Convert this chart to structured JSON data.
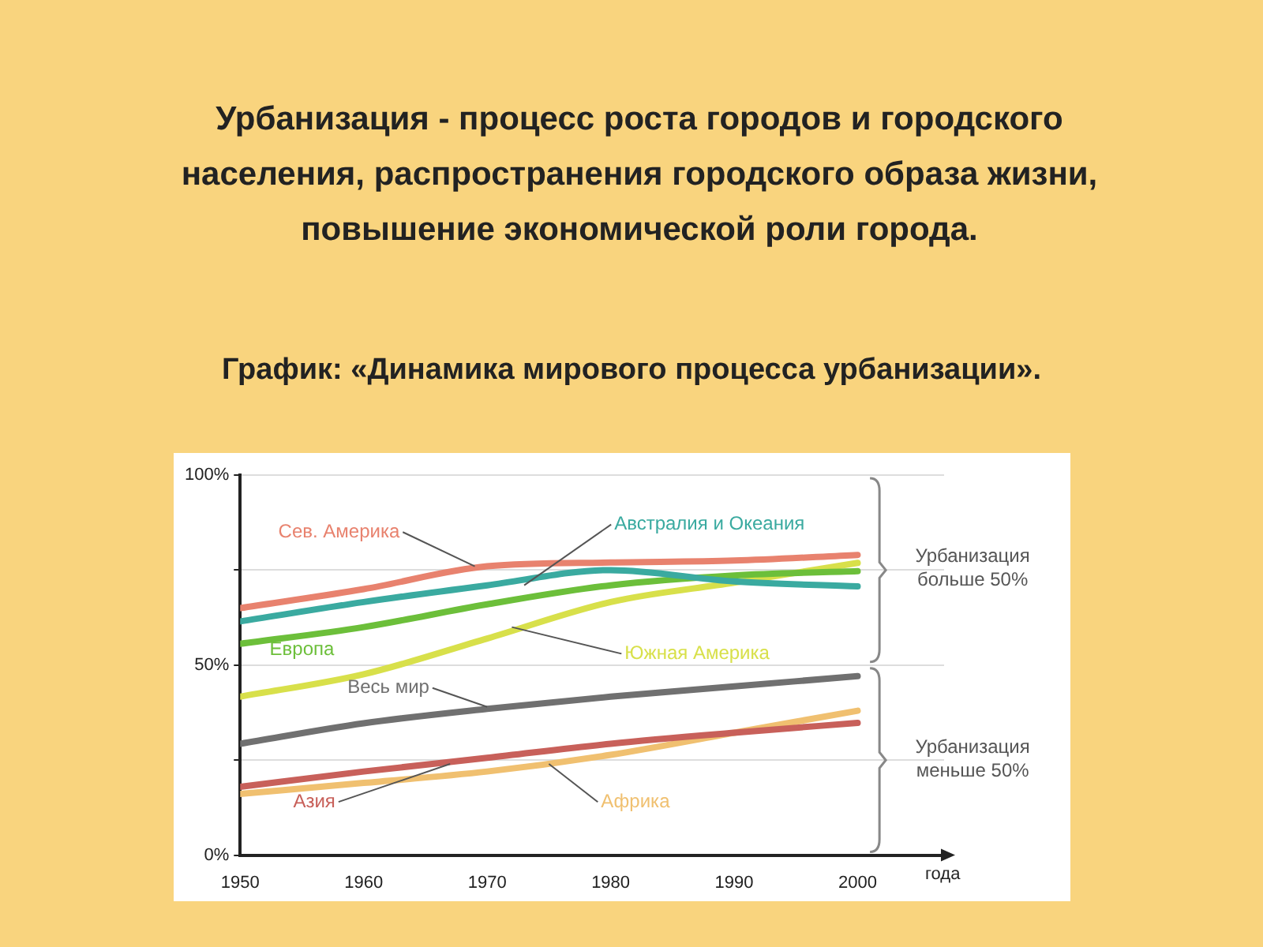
{
  "chart_data": {
    "type": "line",
    "title": "Урбанизация - процесс роста городов и городского населения, распространения городского образа жизни, повышение экономической роли города.",
    "subtitle": "График: «Динамика мирового процесса урбанизации».",
    "xlabel": "года",
    "x": [
      1950,
      1960,
      1970,
      1980,
      1990,
      2000
    ],
    "series": [
      {
        "name": "Сев. Америка",
        "color": "#e8826e",
        "values": [
          65,
          70,
          76,
          77,
          77.5,
          79
        ]
      },
      {
        "name": "Австралия и Океания",
        "color": "#3aaaa0",
        "values": [
          61.5,
          66.6,
          71,
          75,
          72,
          70.7
        ]
      },
      {
        "name": "Европа",
        "color": "#6cbf3a",
        "values": [
          55.6,
          60,
          66,
          71,
          73.6,
          74.7
        ]
      },
      {
        "name": "Южная Америка",
        "color": "#d8e04a",
        "values": [
          41.7,
          47.6,
          57,
          66.6,
          71.7,
          76.9
        ]
      },
      {
        "name": "Весь мир",
        "color": "#707070",
        "values": [
          29.3,
          34.7,
          38.5,
          41.7,
          44.4,
          47.1
        ]
      },
      {
        "name": "Азия",
        "color": "#c8605a",
        "values": [
          18,
          22,
          25.6,
          29.3,
          32.2,
          34.8
        ]
      },
      {
        "name": "Африка",
        "color": "#f0c070",
        "values": [
          16.1,
          19,
          22,
          26.4,
          32.2,
          38
        ]
      }
    ],
    "xlim": [
      1950,
      2007
    ],
    "xticks": [
      1950,
      1960,
      1970,
      1980,
      1990,
      2000
    ],
    "ylim": [
      0,
      100
    ],
    "yticks": [
      {
        "value": 0,
        "label": "0%"
      },
      {
        "value": 25,
        "label": null
      },
      {
        "value": 50,
        "label": "50%"
      },
      {
        "value": 75,
        "label": null
      },
      {
        "value": 100,
        "label": "100%"
      }
    ],
    "grid": "y",
    "legend": false,
    "marker": "none",
    "line_style": "solid",
    "annotations": [
      "Урбанизация больше 50%",
      "Урбанизация меньше 50%"
    ]
  }
}
